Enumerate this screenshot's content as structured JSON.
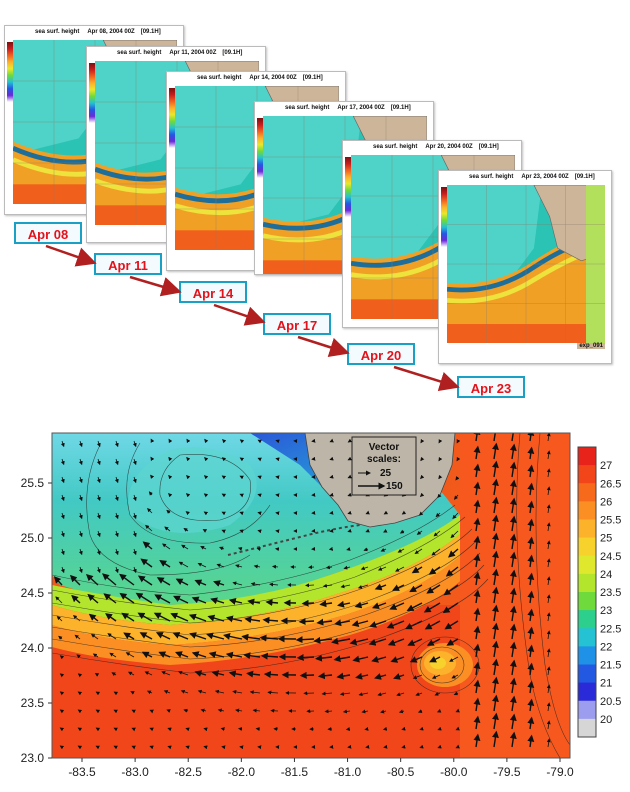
{
  "panels": [
    {
      "title": "sea surf. height",
      "date": "Apr 08, 2004  00Z",
      "tag": "[09.1H]",
      "label": "Apr 08"
    },
    {
      "title": "sea surf. height",
      "date": "Apr 11, 2004  00Z",
      "tag": "[09.1H]",
      "label": "Apr 11"
    },
    {
      "title": "sea surf. height",
      "date": "Apr 14, 2004  00Z",
      "tag": "[09.1H]",
      "label": "Apr 14"
    },
    {
      "title": "sea surf. height",
      "date": "Apr 17, 2004  00Z",
      "tag": "[09.1H]",
      "label": "Apr 17"
    },
    {
      "title": "sea surf. height",
      "date": "Apr 20, 2004  00Z",
      "tag": "[09.1H]",
      "label": "Apr 20"
    },
    {
      "title": "sea surf. height",
      "date": "Apr 23, 2004  00Z",
      "tag": "[09.1H]",
      "label": "Apr 23"
    }
  ],
  "last_panel_note": "exp_091",
  "colors": {
    "label_border": "#1aa0c4",
    "label_text": "#e4121a",
    "arrow": "#b02020",
    "land": "#cdb59a"
  },
  "bigplot": {
    "x_ticks": [
      "-83.5",
      "-83.0",
      "-82.5",
      "-82.0",
      "-81.5",
      "-81.0",
      "-80.5",
      "-80.0",
      "-79.5",
      "-79.0"
    ],
    "y_ticks": [
      "25.5",
      "25.0",
      "24.5",
      "24.0",
      "23.5",
      "23.0"
    ],
    "colorbar_labels": [
      "27",
      "26.5",
      "26",
      "25.5",
      "25",
      "24.5",
      "24",
      "23.5",
      "23",
      "22.5",
      "22",
      "21.5",
      "21",
      "20.5",
      "20"
    ],
    "colorbar_colors": [
      "#e8231c",
      "#f2461a",
      "#f76a1c",
      "#fb8f24",
      "#fdb22c",
      "#f7d22c",
      "#dfe82c",
      "#b3e52c",
      "#6fda3c",
      "#2ccf8c",
      "#24c2d2",
      "#1f92e8",
      "#2358e2",
      "#2a2ad8",
      "#9d9df0",
      "#d6d6d6"
    ],
    "vector_scale": {
      "title": "Vector",
      "subtitle": "scales:",
      "small": "25",
      "large": "150"
    }
  }
}
